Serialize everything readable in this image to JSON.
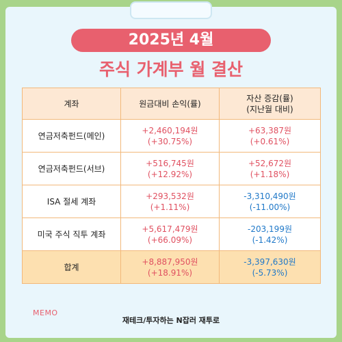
{
  "header": {
    "title": "2025년 4월",
    "subtitle": "주식 가계부 월 결산"
  },
  "table": {
    "headers": [
      "계좌",
      "원금대비 손익(률)",
      "자산 증감(률)\n(지난월 대비)"
    ],
    "rows": [
      {
        "name": "연금저축펀드(메인)",
        "profit": "+2,460,194원\n(+30.75%)",
        "change": "+63,387원\n(+0.61%)",
        "change_sign": "pos"
      },
      {
        "name": "연금저축펀드(서브)",
        "profit": "+516,745원\n(+12.92%)",
        "change": "+52,672원\n(+1.18%)",
        "change_sign": "pos"
      },
      {
        "name": "ISA 절세 계좌",
        "profit": "+293,532원\n(+1.11%)",
        "change": "-3,310,490원\n(-11.00%)",
        "change_sign": "neg"
      },
      {
        "name": "미국 주식 직투 계좌",
        "profit": "+5,617,479원\n(+66.09%)",
        "change": "-203,199원\n(-1.42%)",
        "change_sign": "neg"
      }
    ],
    "total": {
      "name": "합계",
      "profit": "+8,887,950원\n(+18.91%)",
      "change": "-3,397,630원\n(-5.73%)",
      "change_sign": "neg"
    }
  },
  "memo_label": "MEMO",
  "footer": "재테크/투자하는 N잡러 재투로",
  "colors": {
    "accent": "#e8606e",
    "positive": "#e05060",
    "negative": "#1f78c8",
    "header_bg": "#fde8d4",
    "total_bg": "#fde0b0",
    "background": "#a8d48a",
    "paper": "#e9f6fc"
  }
}
